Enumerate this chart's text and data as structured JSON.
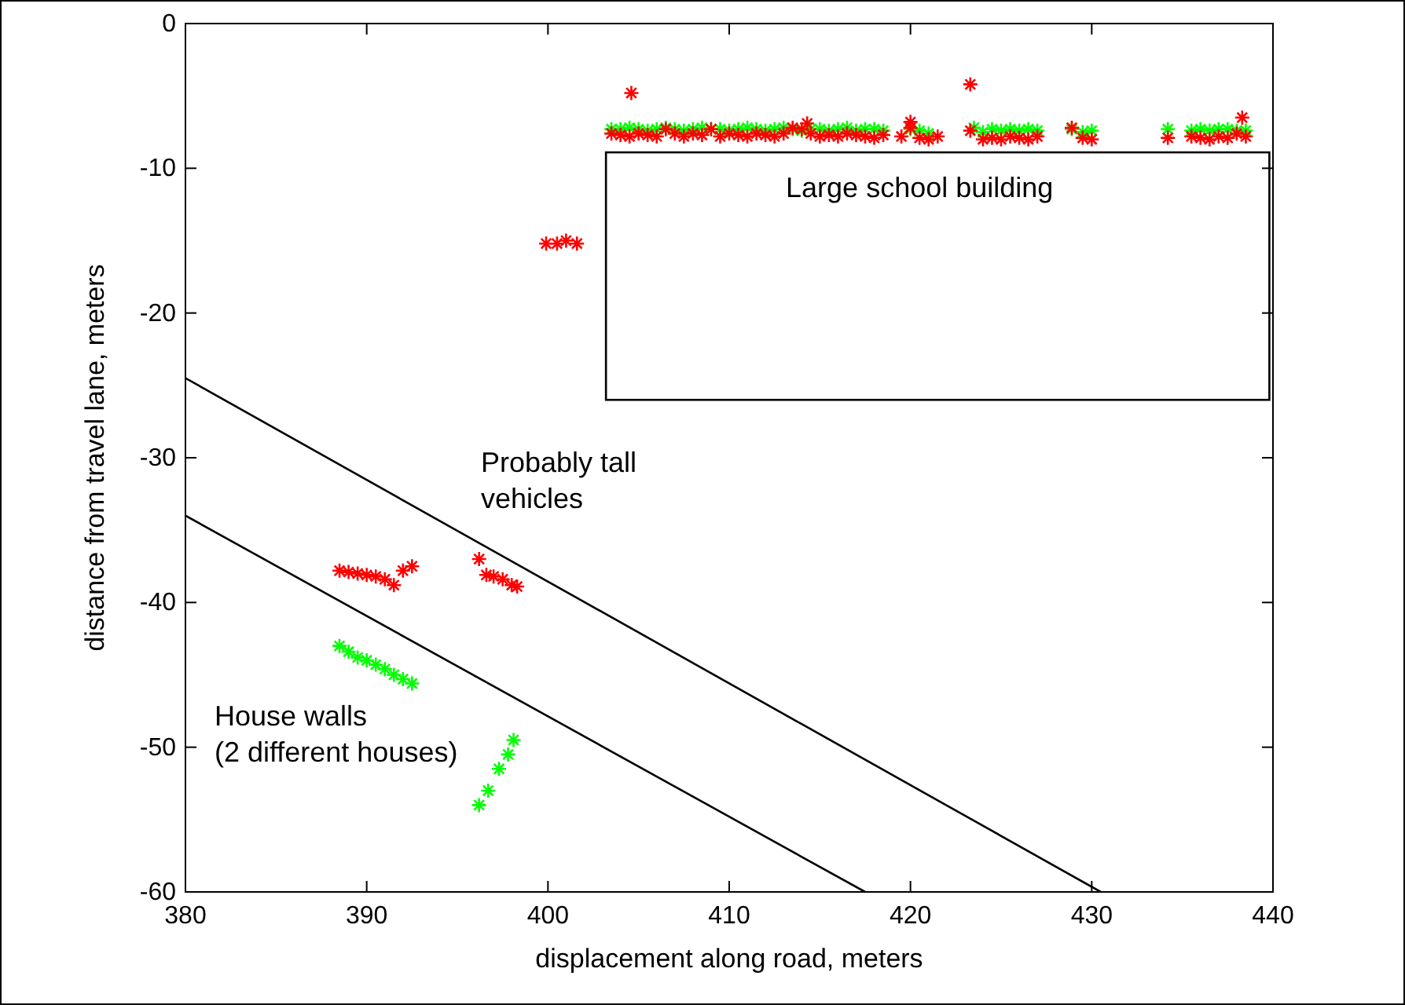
{
  "chart_data": {
    "type": "scatter",
    "xlabel": "displacement along road, meters",
    "ylabel": "distance from travel lane, meters",
    "xlim": [
      380,
      440
    ],
    "ylim": [
      -60,
      0
    ],
    "xticks": [
      380,
      390,
      400,
      410,
      420,
      430,
      440
    ],
    "yticks": [
      -60,
      -50,
      -40,
      -30,
      -20,
      -10,
      0
    ],
    "grid": false,
    "marker": "cross",
    "series": [
      {
        "color": "#00ff00",
        "x": [
          403.5,
          404,
          404.5,
          405,
          405.5,
          406,
          406.5,
          407,
          407.5,
          408,
          408.5,
          409,
          409.5,
          410,
          410.5,
          411,
          411.5,
          412,
          412.5,
          413,
          413.5,
          414,
          414.5,
          415,
          415.5,
          416,
          416.5,
          417,
          417.5,
          418,
          418.5,
          420,
          420.5,
          421,
          423.5,
          424,
          424.5,
          425,
          425.5,
          426,
          426.5,
          427,
          428.9,
          429.5,
          430,
          434.2,
          435.5,
          436,
          436.5,
          437,
          437.5,
          438,
          438.5,
          388.5,
          389,
          389.5,
          390,
          390.5,
          391,
          391.5,
          392,
          392.5,
          396.2,
          396.7,
          397.3,
          397.8,
          398.1
        ],
        "values": [
          -7.3,
          -7.3,
          -7.2,
          -7.3,
          -7.4,
          -7.3,
          -7.2,
          -7.3,
          -7.4,
          -7.3,
          -7.2,
          -7.3,
          -7.3,
          -7.4,
          -7.3,
          -7.2,
          -7.3,
          -7.4,
          -7.3,
          -7.2,
          -7.3,
          -7.4,
          -7.3,
          -7.3,
          -7.4,
          -7.3,
          -7.2,
          -7.4,
          -7.3,
          -7.3,
          -7.4,
          -7.3,
          -7.4,
          -7.6,
          -7.2,
          -7.5,
          -7.3,
          -7.4,
          -7.3,
          -7.4,
          -7.3,
          -7.4,
          -7.3,
          -7.5,
          -7.4,
          -7.3,
          -7.4,
          -7.3,
          -7.4,
          -7.3,
          -7.3,
          -7.4,
          -7.4,
          -43,
          -43.4,
          -43.8,
          -44,
          -44.3,
          -44.6,
          -45,
          -45.3,
          -45.6,
          -54,
          -53,
          -51.5,
          -50.5,
          -49.5
        ]
      },
      {
        "color": "#ff0000",
        "x": [
          403.5,
          404,
          404.5,
          405,
          405.5,
          406,
          406.5,
          407,
          407.5,
          408,
          408.5,
          409,
          409.5,
          410,
          410.5,
          411,
          411.5,
          412,
          412.5,
          413,
          413.5,
          414,
          414.5,
          415,
          415.5,
          416,
          416.5,
          417,
          417.5,
          418,
          418.5,
          419.5,
          420,
          420.5,
          421,
          421.5,
          423.3,
          424,
          424.5,
          425,
          425.5,
          426,
          426.5,
          427,
          428.9,
          429.5,
          430,
          434.2,
          435.5,
          436,
          436.5,
          437,
          437.5,
          438,
          438.5,
          404.6,
          423.3,
          438.3,
          414.3,
          420,
          399.9,
          400.5,
          401,
          401.6,
          388.5,
          389,
          389.5,
          390,
          390.5,
          391,
          391.5,
          392,
          392.5,
          396.2,
          396.6,
          397,
          397.5,
          398,
          398.3
        ],
        "values": [
          -7.6,
          -7.7,
          -7.8,
          -7.6,
          -7.7,
          -7.8,
          -7.3,
          -7.6,
          -7.8,
          -7.6,
          -7.7,
          -7.3,
          -7.8,
          -7.6,
          -7.7,
          -7.8,
          -7.6,
          -7.7,
          -7.8,
          -7.6,
          -7.2,
          -7.3,
          -7.6,
          -7.8,
          -7.7,
          -7.8,
          -7.6,
          -7.7,
          -7.8,
          -7.9,
          -7.7,
          -7.8,
          -7.2,
          -7.9,
          -8,
          -7.8,
          -7.4,
          -8,
          -7.9,
          -8,
          -7.8,
          -7.9,
          -8,
          -7.8,
          -7.2,
          -7.9,
          -8,
          -7.9,
          -7.8,
          -7.9,
          -8,
          -7.8,
          -7.9,
          -7.6,
          -7.8,
          -4.8,
          -4.2,
          -6.5,
          -6.9,
          -6.8,
          -15.2,
          -15.2,
          -15,
          -15.2,
          -37.8,
          -37.9,
          -38,
          -38.1,
          -38.2,
          -38.4,
          -38.8,
          -37.8,
          -37.5,
          -37,
          -38.1,
          -38.2,
          -38.4,
          -38.8,
          -38.9
        ]
      },
      {
        "type": "line",
        "color": "#000000",
        "marker": "none",
        "x": [
          380,
          430.5
        ],
        "values": [
          -24.5,
          -60
        ]
      },
      {
        "type": "line",
        "color": "#000000",
        "marker": "none",
        "x": [
          380,
          417.5
        ],
        "values": [
          -34,
          -60
        ]
      }
    ],
    "annotations": [
      "Large school building",
      "Probably tall\nvehicles",
      "House walls\n(2 different houses)"
    ]
  }
}
